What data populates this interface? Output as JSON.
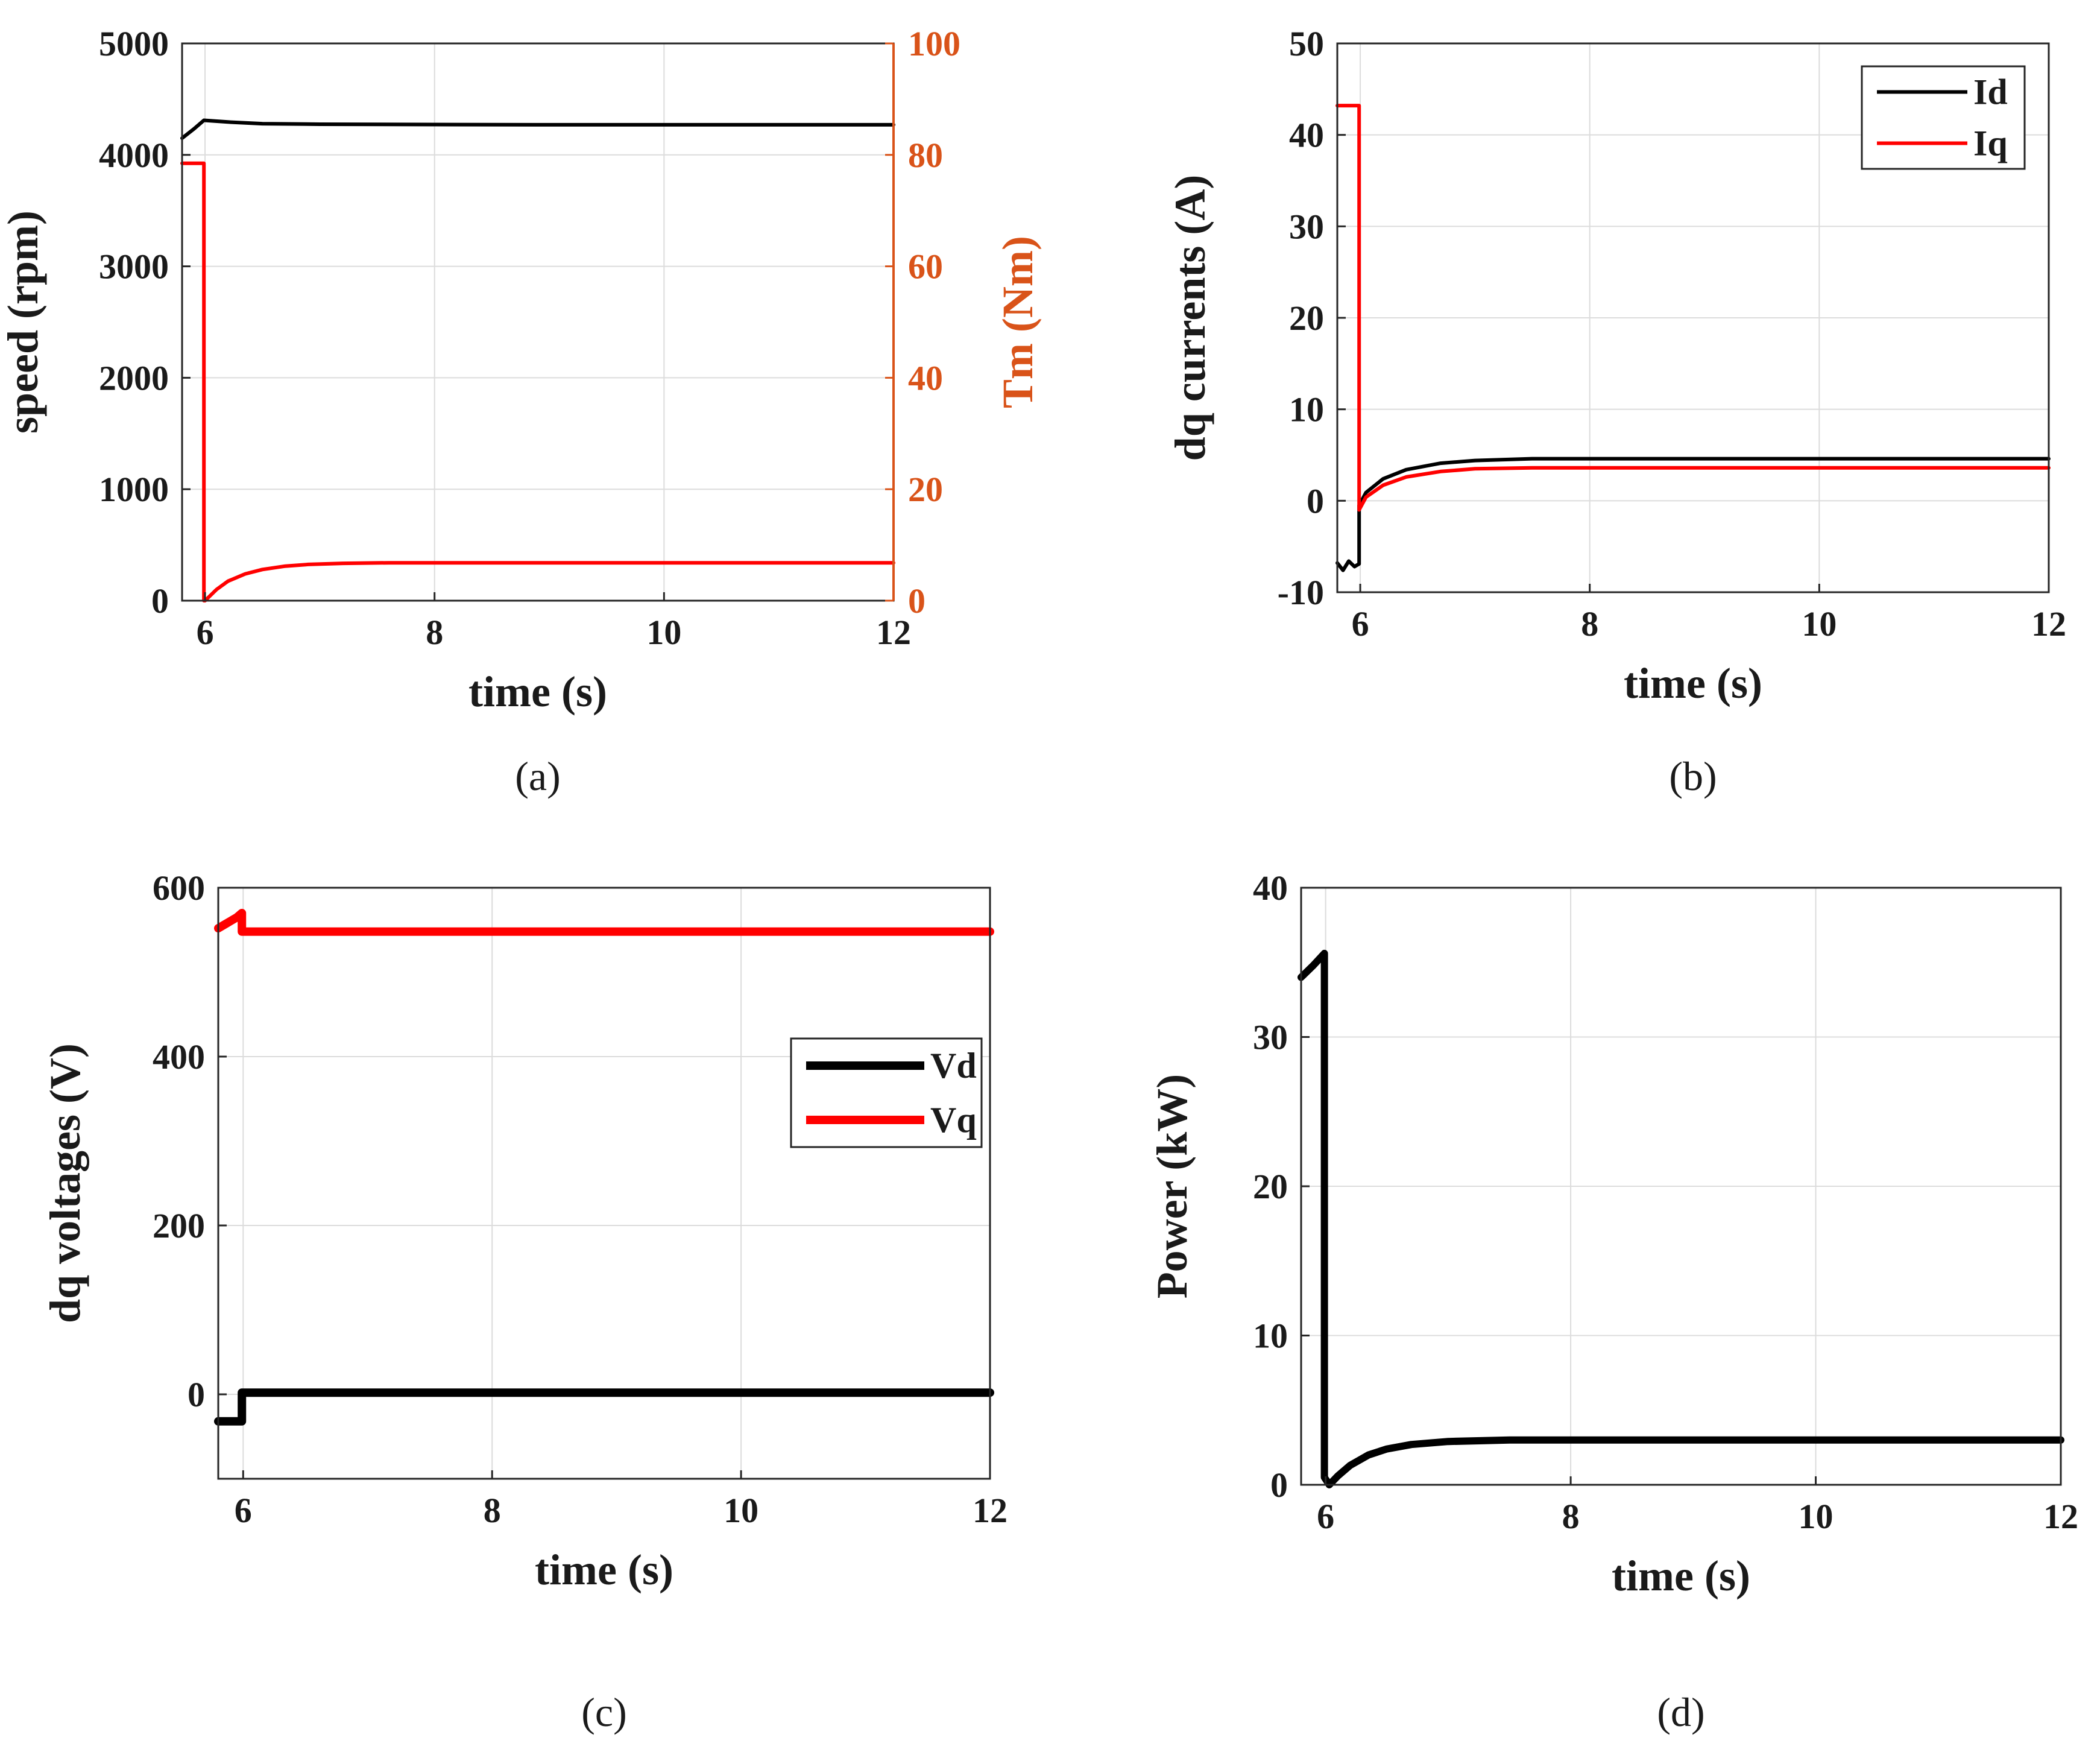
{
  "colors": {
    "black": "#000000",
    "red": "#ff0000",
    "orange": "#d95319",
    "grid": "#dcdcdc",
    "axis": "#262626"
  },
  "chart_data": [
    {
      "id": "a",
      "panel_label": "(a)",
      "type": "line",
      "xlabel": "time (s)",
      "ylabel": "speed (rpm)",
      "y2label": "Tm (Nm)",
      "xlim": [
        5.8,
        12
      ],
      "ylim": [
        0,
        5000
      ],
      "y2lim": [
        0,
        100
      ],
      "xticks": [
        6,
        8,
        10,
        12
      ],
      "xtick_labels": [
        "6",
        "8",
        "10",
        "12"
      ],
      "yticks": [
        0,
        1000,
        2000,
        3000,
        4000,
        5000
      ],
      "ytick_labels": [
        "0",
        "1000",
        "2000",
        "3000",
        "4000",
        "5000"
      ],
      "y2ticks": [
        0,
        20,
        40,
        60,
        80,
        100
      ],
      "y2tick_labels": [
        "0",
        "20",
        "40",
        "60",
        "80",
        "100"
      ],
      "grid": true,
      "legend": null,
      "series": [
        {
          "name": "speed",
          "axis": "left",
          "color": "black",
          "width": 6,
          "x": [
            5.8,
            5.9,
            5.99,
            6.2,
            6.5,
            7.0,
            8.0,
            9.0,
            10.0,
            11.0,
            12.0
          ],
          "y": [
            4150,
            4230,
            4310,
            4295,
            4280,
            4275,
            4272,
            4270,
            4270,
            4270,
            4270
          ]
        },
        {
          "name": "Tm",
          "axis": "right",
          "color": "red",
          "width": 6,
          "x": [
            5.8,
            5.99,
            5.99,
            6.0,
            6.1,
            6.2,
            6.35,
            6.5,
            6.7,
            6.9,
            7.2,
            7.6,
            8.0,
            9.0,
            10.0,
            11.0,
            12.0
          ],
          "y": [
            78.5,
            78.5,
            0,
            0,
            2.0,
            3.5,
            4.8,
            5.6,
            6.2,
            6.5,
            6.7,
            6.8,
            6.8,
            6.8,
            6.8,
            6.8,
            6.8
          ]
        }
      ]
    },
    {
      "id": "b",
      "panel_label": "(b)",
      "type": "line",
      "xlabel": "time (s)",
      "ylabel": "dq currents (A)",
      "xlim": [
        5.8,
        12
      ],
      "ylim": [
        -10,
        50
      ],
      "xticks": [
        6,
        8,
        10,
        12
      ],
      "xtick_labels": [
        "6",
        "8",
        "10",
        "12"
      ],
      "yticks": [
        -10,
        0,
        10,
        20,
        30,
        40,
        50
      ],
      "ytick_labels": [
        "-10",
        "0",
        "10",
        "20",
        "30",
        "40",
        "50"
      ],
      "grid": true,
      "legend": {
        "position": "top-right",
        "entries": [
          "Id",
          "Iq"
        ]
      },
      "series": [
        {
          "name": "Id",
          "color": "black",
          "width": 6,
          "x": [
            5.8,
            5.85,
            5.9,
            5.95,
            5.99,
            5.99,
            6.05,
            6.2,
            6.4,
            6.7,
            7.0,
            7.5,
            8.0,
            9.0,
            10.0,
            11.0,
            12.0
          ],
          "y": [
            -6.8,
            -7.6,
            -6.6,
            -7.2,
            -6.9,
            -0.5,
            0.9,
            2.4,
            3.4,
            4.1,
            4.4,
            4.6,
            4.6,
            4.6,
            4.6,
            4.6,
            4.6
          ]
        },
        {
          "name": "Iq",
          "color": "red",
          "width": 6,
          "x": [
            5.8,
            5.99,
            5.99,
            6.05,
            6.2,
            6.4,
            6.7,
            7.0,
            7.5,
            8.0,
            9.0,
            10.0,
            11.0,
            12.0
          ],
          "y": [
            43.2,
            43.2,
            -1.0,
            0.4,
            1.7,
            2.6,
            3.2,
            3.5,
            3.6,
            3.6,
            3.6,
            3.6,
            3.6,
            3.6
          ]
        }
      ]
    },
    {
      "id": "c",
      "panel_label": "(c)",
      "type": "line",
      "xlabel": "time (s)",
      "ylabel": "dq voltages (V)",
      "xlim": [
        5.8,
        12
      ],
      "ylim": [
        -100,
        600
      ],
      "xticks": [
        6,
        8,
        10,
        12
      ],
      "xtick_labels": [
        "6",
        "8",
        "10",
        "12"
      ],
      "yticks": [
        0,
        200,
        400,
        600
      ],
      "ytick_labels": [
        "0",
        "200",
        "400",
        "600"
      ],
      "grid": true,
      "legend": {
        "position": "right-middle",
        "entries": [
          "Vd",
          "Vq"
        ]
      },
      "series": [
        {
          "name": "Vd",
          "color": "black",
          "width": 14,
          "x": [
            5.8,
            5.99,
            5.99,
            6.5,
            8.0,
            10.0,
            12.0
          ],
          "y": [
            -32,
            -32,
            2,
            2,
            2,
            2,
            2
          ]
        },
        {
          "name": "Vq",
          "color": "red",
          "width": 14,
          "x": [
            5.8,
            5.95,
            5.99,
            5.99,
            6.5,
            8.0,
            10.0,
            12.0
          ],
          "y": [
            552,
            565,
            570,
            548,
            548,
            548,
            548,
            548
          ]
        }
      ]
    },
    {
      "id": "d",
      "panel_label": "(d)",
      "type": "line",
      "xlabel": "time (s)",
      "ylabel": "Power (kW)",
      "xlim": [
        5.8,
        12
      ],
      "ylim": [
        0,
        40
      ],
      "xticks": [
        6,
        8,
        10,
        12
      ],
      "xtick_labels": [
        "6",
        "8",
        "10",
        "12"
      ],
      "yticks": [
        0,
        10,
        20,
        30,
        40
      ],
      "ytick_labels": [
        "0",
        "10",
        "20",
        "30",
        "40"
      ],
      "grid": true,
      "legend": null,
      "series": [
        {
          "name": "Power",
          "color": "black",
          "width": 12,
          "x": [
            5.8,
            5.9,
            5.99,
            5.99,
            6.03,
            6.1,
            6.2,
            6.35,
            6.5,
            6.7,
            7.0,
            7.5,
            8.0,
            9.0,
            10.0,
            11.0,
            12.0
          ],
          "y": [
            34.0,
            34.8,
            35.6,
            0.5,
            0.0,
            0.6,
            1.3,
            2.0,
            2.4,
            2.7,
            2.9,
            3.0,
            3.0,
            3.0,
            3.0,
            3.0,
            3.0
          ]
        }
      ]
    }
  ]
}
